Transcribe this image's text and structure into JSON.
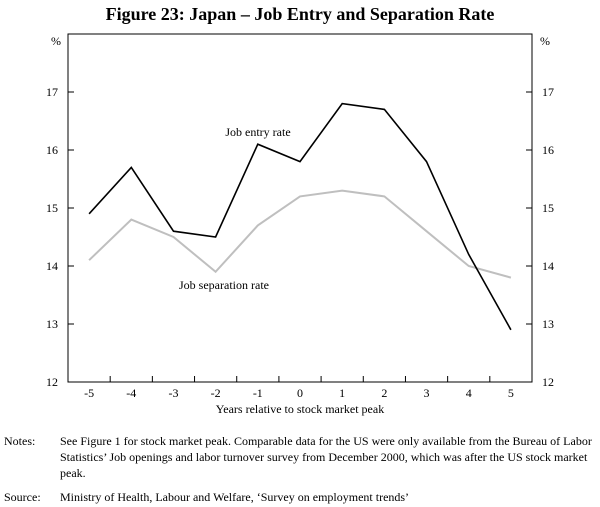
{
  "chart_data": {
    "type": "line",
    "title": "Figure 23: Japan – Job Entry and Separation Rate",
    "xlabel": "Years relative to stock market peak",
    "ylabel_left": "%",
    "ylabel_right": "%",
    "x": [
      -5,
      -4,
      -3,
      -2,
      -1,
      0,
      1,
      2,
      3,
      4,
      5
    ],
    "x_tick_labels": [
      "-5",
      "-4",
      "-3",
      "-2",
      "-1",
      "0",
      "1",
      "2",
      "3",
      "4",
      "5"
    ],
    "ylim": [
      12,
      18
    ],
    "y_ticks": [
      12,
      13,
      14,
      15,
      16,
      17
    ],
    "y_tick_labels": [
      "12",
      "13",
      "14",
      "15",
      "16",
      "17"
    ],
    "grid": false,
    "series": [
      {
        "name": "Job entry rate",
        "color": "#000000",
        "values": [
          14.9,
          15.7,
          14.6,
          14.5,
          16.1,
          15.8,
          16.8,
          16.7,
          15.8,
          14.2,
          12.9
        ]
      },
      {
        "name": "Job separation rate",
        "color": "#bfbfbf",
        "values": [
          14.1,
          14.8,
          14.5,
          13.9,
          14.7,
          15.2,
          15.3,
          15.2,
          14.6,
          14.0,
          13.8
        ]
      }
    ]
  },
  "notes": {
    "label": "Notes:",
    "text": "See Figure 1 for stock market peak. Comparable data for the US were only available from the Bureau of Labor Statistics’ Job openings and labor turnover survey from December 2000, which was after the US stock market peak."
  },
  "source": {
    "label": "Source:",
    "text": "Ministry of Health, Labour and Welfare, ‘Survey on employment trends’"
  }
}
